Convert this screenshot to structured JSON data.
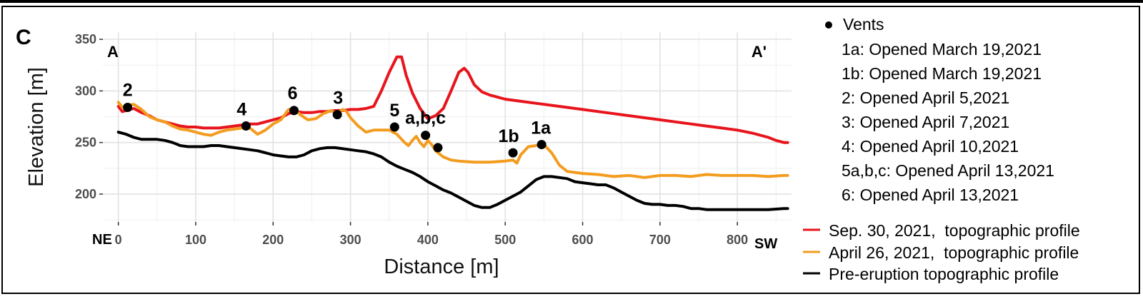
{
  "panel_letter": "C",
  "chart_data": {
    "type": "line",
    "title": "",
    "xlabel": "Distance [m]",
    "ylabel": "Elevation [m]",
    "xlim": [
      -20,
      870
    ],
    "ylim": [
      173,
      357
    ],
    "x_ticks": [
      0,
      100,
      200,
      300,
      400,
      500,
      600,
      700,
      800
    ],
    "y_ticks": [
      200,
      250,
      300,
      350
    ],
    "grid": true,
    "legend_position": "right",
    "corner_labels": {
      "left": "A",
      "right": "A'",
      "bottom_left": "NE",
      "bottom_right": "SW"
    },
    "series": [
      {
        "name": "Sep. 30, 2021,  topographic profile",
        "color": "#e8141c",
        "points": [
          [
            0,
            285
          ],
          [
            5,
            280
          ],
          [
            10,
            281
          ],
          [
            20,
            283
          ],
          [
            30,
            279
          ],
          [
            40,
            276
          ],
          [
            50,
            272
          ],
          [
            60,
            270
          ],
          [
            70,
            268
          ],
          [
            80,
            266
          ],
          [
            90,
            265
          ],
          [
            100,
            265
          ],
          [
            110,
            264
          ],
          [
            120,
            264
          ],
          [
            130,
            264
          ],
          [
            140,
            265
          ],
          [
            150,
            266
          ],
          [
            160,
            267
          ],
          [
            170,
            268
          ],
          [
            180,
            268
          ],
          [
            190,
            270
          ],
          [
            200,
            272
          ],
          [
            210,
            274
          ],
          [
            220,
            278
          ],
          [
            230,
            280
          ],
          [
            240,
            279
          ],
          [
            250,
            279
          ],
          [
            260,
            280
          ],
          [
            270,
            280
          ],
          [
            280,
            281
          ],
          [
            290,
            281
          ],
          [
            300,
            282
          ],
          [
            310,
            282
          ],
          [
            320,
            283
          ],
          [
            330,
            285
          ],
          [
            340,
            300
          ],
          [
            350,
            318
          ],
          [
            360,
            333
          ],
          [
            366,
            333
          ],
          [
            372,
            315
          ],
          [
            380,
            298
          ],
          [
            390,
            283
          ],
          [
            400,
            273
          ],
          [
            410,
            276
          ],
          [
            420,
            283
          ],
          [
            430,
            300
          ],
          [
            440,
            318
          ],
          [
            447,
            322
          ],
          [
            452,
            318
          ],
          [
            460,
            306
          ],
          [
            470,
            299
          ],
          [
            480,
            296
          ],
          [
            490,
            294
          ],
          [
            500,
            292
          ],
          [
            520,
            290
          ],
          [
            540,
            288
          ],
          [
            560,
            286
          ],
          [
            580,
            284
          ],
          [
            600,
            282
          ],
          [
            620,
            280
          ],
          [
            640,
            278
          ],
          [
            660,
            276
          ],
          [
            680,
            274
          ],
          [
            700,
            272
          ],
          [
            720,
            270
          ],
          [
            740,
            268
          ],
          [
            760,
            266
          ],
          [
            780,
            264
          ],
          [
            800,
            262
          ],
          [
            820,
            259
          ],
          [
            840,
            255
          ],
          [
            850,
            252
          ],
          [
            860,
            250
          ],
          [
            865,
            250
          ]
        ]
      },
      {
        "name": "April 26, 2021,  topographic profile",
        "color": "#f39c1f",
        "points": [
          [
            0,
            289
          ],
          [
            5,
            284
          ],
          [
            10,
            286
          ],
          [
            20,
            287
          ],
          [
            30,
            282
          ],
          [
            40,
            275
          ],
          [
            50,
            272
          ],
          [
            60,
            270
          ],
          [
            70,
            266
          ],
          [
            80,
            263
          ],
          [
            90,
            262
          ],
          [
            100,
            260
          ],
          [
            110,
            258
          ],
          [
            120,
            257
          ],
          [
            130,
            260
          ],
          [
            140,
            262
          ],
          [
            150,
            263
          ],
          [
            160,
            264
          ],
          [
            165,
            266
          ],
          [
            170,
            264
          ],
          [
            180,
            258
          ],
          [
            190,
            262
          ],
          [
            200,
            268
          ],
          [
            210,
            272
          ],
          [
            220,
            282
          ],
          [
            228,
            282
          ],
          [
            235,
            277
          ],
          [
            245,
            272
          ],
          [
            255,
            273
          ],
          [
            265,
            278
          ],
          [
            275,
            281
          ],
          [
            282,
            278
          ],
          [
            290,
            282
          ],
          [
            295,
            280
          ],
          [
            300,
            274
          ],
          [
            310,
            266
          ],
          [
            320,
            260
          ],
          [
            330,
            262
          ],
          [
            340,
            262
          ],
          [
            350,
            262
          ],
          [
            360,
            258
          ],
          [
            370,
            250
          ],
          [
            375,
            247
          ],
          [
            380,
            252
          ],
          [
            385,
            256
          ],
          [
            390,
            250
          ],
          [
            395,
            246
          ],
          [
            400,
            252
          ],
          [
            405,
            248
          ],
          [
            410,
            242
          ],
          [
            420,
            236
          ],
          [
            430,
            233
          ],
          [
            440,
            232
          ],
          [
            460,
            231
          ],
          [
            480,
            231
          ],
          [
            500,
            232
          ],
          [
            510,
            233
          ],
          [
            515,
            230
          ],
          [
            520,
            238
          ],
          [
            530,
            246
          ],
          [
            540,
            247
          ],
          [
            550,
            248
          ],
          [
            560,
            240
          ],
          [
            570,
            228
          ],
          [
            580,
            222
          ],
          [
            600,
            220
          ],
          [
            620,
            219
          ],
          [
            640,
            217
          ],
          [
            660,
            218
          ],
          [
            680,
            216
          ],
          [
            700,
            218
          ],
          [
            720,
            218
          ],
          [
            740,
            217
          ],
          [
            760,
            219
          ],
          [
            780,
            218
          ],
          [
            800,
            218
          ],
          [
            820,
            218
          ],
          [
            840,
            217
          ],
          [
            860,
            218
          ],
          [
            865,
            218
          ]
        ]
      },
      {
        "name": "Pre-eruption topographic profile",
        "color": "#000000",
        "points": [
          [
            0,
            260
          ],
          [
            10,
            258
          ],
          [
            20,
            255
          ],
          [
            30,
            253
          ],
          [
            40,
            253
          ],
          [
            50,
            253
          ],
          [
            60,
            252
          ],
          [
            70,
            250
          ],
          [
            80,
            247
          ],
          [
            90,
            246
          ],
          [
            100,
            246
          ],
          [
            110,
            246
          ],
          [
            120,
            247
          ],
          [
            130,
            247
          ],
          [
            140,
            246
          ],
          [
            150,
            245
          ],
          [
            160,
            244
          ],
          [
            170,
            243
          ],
          [
            180,
            242
          ],
          [
            190,
            240
          ],
          [
            200,
            238
          ],
          [
            210,
            237
          ],
          [
            220,
            236
          ],
          [
            230,
            236
          ],
          [
            240,
            238
          ],
          [
            250,
            242
          ],
          [
            260,
            244
          ],
          [
            270,
            245
          ],
          [
            280,
            245
          ],
          [
            290,
            244
          ],
          [
            300,
            243
          ],
          [
            310,
            242
          ],
          [
            320,
            241
          ],
          [
            330,
            239
          ],
          [
            340,
            236
          ],
          [
            350,
            231
          ],
          [
            360,
            227
          ],
          [
            370,
            224
          ],
          [
            380,
            221
          ],
          [
            390,
            217
          ],
          [
            400,
            212
          ],
          [
            410,
            208
          ],
          [
            420,
            204
          ],
          [
            430,
            201
          ],
          [
            440,
            197
          ],
          [
            450,
            193
          ],
          [
            460,
            189
          ],
          [
            470,
            187
          ],
          [
            480,
            187
          ],
          [
            490,
            190
          ],
          [
            500,
            194
          ],
          [
            510,
            198
          ],
          [
            520,
            202
          ],
          [
            530,
            208
          ],
          [
            540,
            214
          ],
          [
            550,
            217
          ],
          [
            560,
            217
          ],
          [
            570,
            216
          ],
          [
            580,
            215
          ],
          [
            590,
            212
          ],
          [
            600,
            211
          ],
          [
            610,
            210
          ],
          [
            620,
            209
          ],
          [
            630,
            209
          ],
          [
            640,
            206
          ],
          [
            650,
            202
          ],
          [
            660,
            198
          ],
          [
            670,
            194
          ],
          [
            680,
            191
          ],
          [
            690,
            190
          ],
          [
            700,
            190
          ],
          [
            710,
            189
          ],
          [
            720,
            189
          ],
          [
            730,
            188
          ],
          [
            740,
            186
          ],
          [
            750,
            186
          ],
          [
            760,
            185
          ],
          [
            780,
            185
          ],
          [
            800,
            185
          ],
          [
            820,
            185
          ],
          [
            840,
            185
          ],
          [
            860,
            186
          ],
          [
            865,
            186
          ]
        ]
      }
    ],
    "vents": [
      {
        "label": "2",
        "x": 12,
        "y": 284
      },
      {
        "label": "4",
        "x": 165,
        "y": 266
      },
      {
        "label": "6",
        "x": 227,
        "y": 281
      },
      {
        "label": "3",
        "x": 283,
        "y": 277
      },
      {
        "label": "5",
        "x": 357,
        "y": 265
      },
      {
        "label": "a,b,c",
        "x": 397,
        "y": 257
      },
      {
        "label": "",
        "x": 413,
        "y": 245
      },
      {
        "label": "1b",
        "x": 510,
        "y": 240
      },
      {
        "label": "1a",
        "x": 547,
        "y": 248
      }
    ],
    "vents_legend": {
      "title": "Vents",
      "entries": [
        "1a: Opened March 19,2021",
        "1b: Opened March 19,2021",
        "2: Opened April 5,2021",
        "3: Opened April 7,2021",
        "4: Opened April 10,2021",
        "5a,b,c: Opened April 13,2021",
        "6: Opened April 13,2021"
      ]
    }
  }
}
